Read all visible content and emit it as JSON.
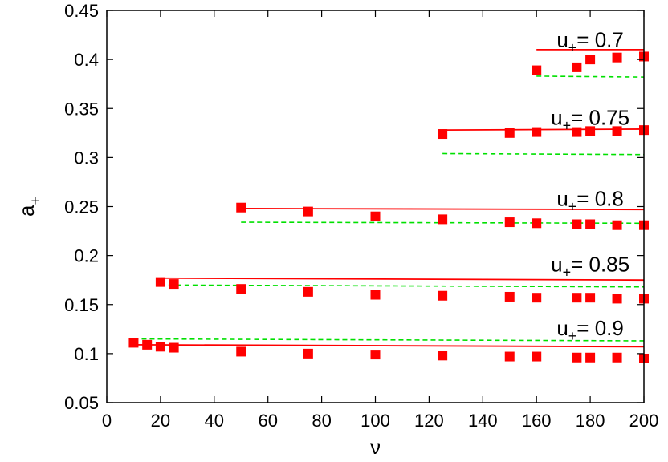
{
  "chart_data": {
    "type": "scatter",
    "xlabel": "ν",
    "ylabel": "a",
    "ylabel_sub": "+",
    "xlim": [
      0,
      200
    ],
    "ylim": [
      0.05,
      0.45
    ],
    "xticks": [
      0,
      20,
      40,
      60,
      80,
      100,
      120,
      140,
      160,
      180,
      200
    ],
    "yticks": [
      0.05,
      0.1,
      0.15,
      0.2,
      0.25,
      0.3,
      0.35,
      0.4,
      0.45
    ],
    "grid": false,
    "legend": "none",
    "colors": {
      "points": "#ff0000",
      "solid": "#ff0000",
      "dashed": "#00e000"
    },
    "groups": [
      {
        "label_main": "u",
        "label_sub": "+",
        "label_value": "= 0.7",
        "label_at": [
          180,
          0.42
        ],
        "points": {
          "x": [
            160,
            175,
            180,
            190,
            200
          ],
          "y": [
            0.389,
            0.392,
            0.4,
            0.402,
            0.403
          ]
        },
        "solid": {
          "x": [
            160,
            200
          ],
          "y": [
            0.41,
            0.41
          ]
        },
        "dashed": {
          "x": [
            160,
            200
          ],
          "y": [
            0.383,
            0.382
          ]
        }
      },
      {
        "label_main": "u",
        "label_sub": "+",
        "label_value": "= 0.75",
        "label_at": [
          180,
          0.341
        ],
        "points": {
          "x": [
            125,
            150,
            160,
            175,
            180,
            190,
            200
          ],
          "y": [
            0.324,
            0.325,
            0.326,
            0.326,
            0.327,
            0.327,
            0.328
          ]
        },
        "solid": {
          "x": [
            125,
            200
          ],
          "y": [
            0.328,
            0.329
          ]
        },
        "dashed": {
          "x": [
            125,
            200
          ],
          "y": [
            0.304,
            0.303
          ]
        }
      },
      {
        "label_main": "u",
        "label_sub": "+",
        "label_value": "= 0.8",
        "label_at": [
          180,
          0.258
        ],
        "points": {
          "x": [
            50,
            75,
            100,
            125,
            150,
            160,
            175,
            180,
            190,
            200
          ],
          "y": [
            0.249,
            0.245,
            0.24,
            0.237,
            0.234,
            0.233,
            0.232,
            0.232,
            0.231,
            0.231
          ]
        },
        "solid": {
          "x": [
            50,
            200
          ],
          "y": [
            0.248,
            0.247
          ]
        },
        "dashed": {
          "x": [
            50,
            200
          ],
          "y": [
            0.234,
            0.233
          ]
        }
      },
      {
        "label_main": "u",
        "label_sub": "+",
        "label_value": "= 0.85",
        "label_at": [
          180,
          0.191
        ],
        "points": {
          "x": [
            20,
            25,
            50,
            75,
            100,
            125,
            150,
            160,
            175,
            180,
            190,
            200
          ],
          "y": [
            0.173,
            0.171,
            0.166,
            0.163,
            0.16,
            0.159,
            0.158,
            0.157,
            0.157,
            0.157,
            0.156,
            0.156
          ]
        },
        "solid": {
          "x": [
            20,
            200
          ],
          "y": [
            0.177,
            0.175
          ]
        },
        "dashed": {
          "x": [
            20,
            200
          ],
          "y": [
            0.17,
            0.168
          ]
        }
      },
      {
        "label_main": "u",
        "label_sub": "+",
        "label_value": "= 0.9",
        "label_at": [
          180,
          0.126
        ],
        "points": {
          "x": [
            10,
            15,
            20,
            25,
            50,
            75,
            100,
            125,
            150,
            160,
            175,
            180,
            190,
            200
          ],
          "y": [
            0.111,
            0.109,
            0.107,
            0.106,
            0.102,
            0.1,
            0.099,
            0.098,
            0.097,
            0.097,
            0.096,
            0.096,
            0.096,
            0.095
          ]
        },
        "solid": {
          "x": [
            10,
            200
          ],
          "y": [
            0.109,
            0.107
          ]
        },
        "dashed": {
          "x": [
            10,
            200
          ],
          "y": [
            0.115,
            0.113
          ]
        }
      }
    ]
  }
}
